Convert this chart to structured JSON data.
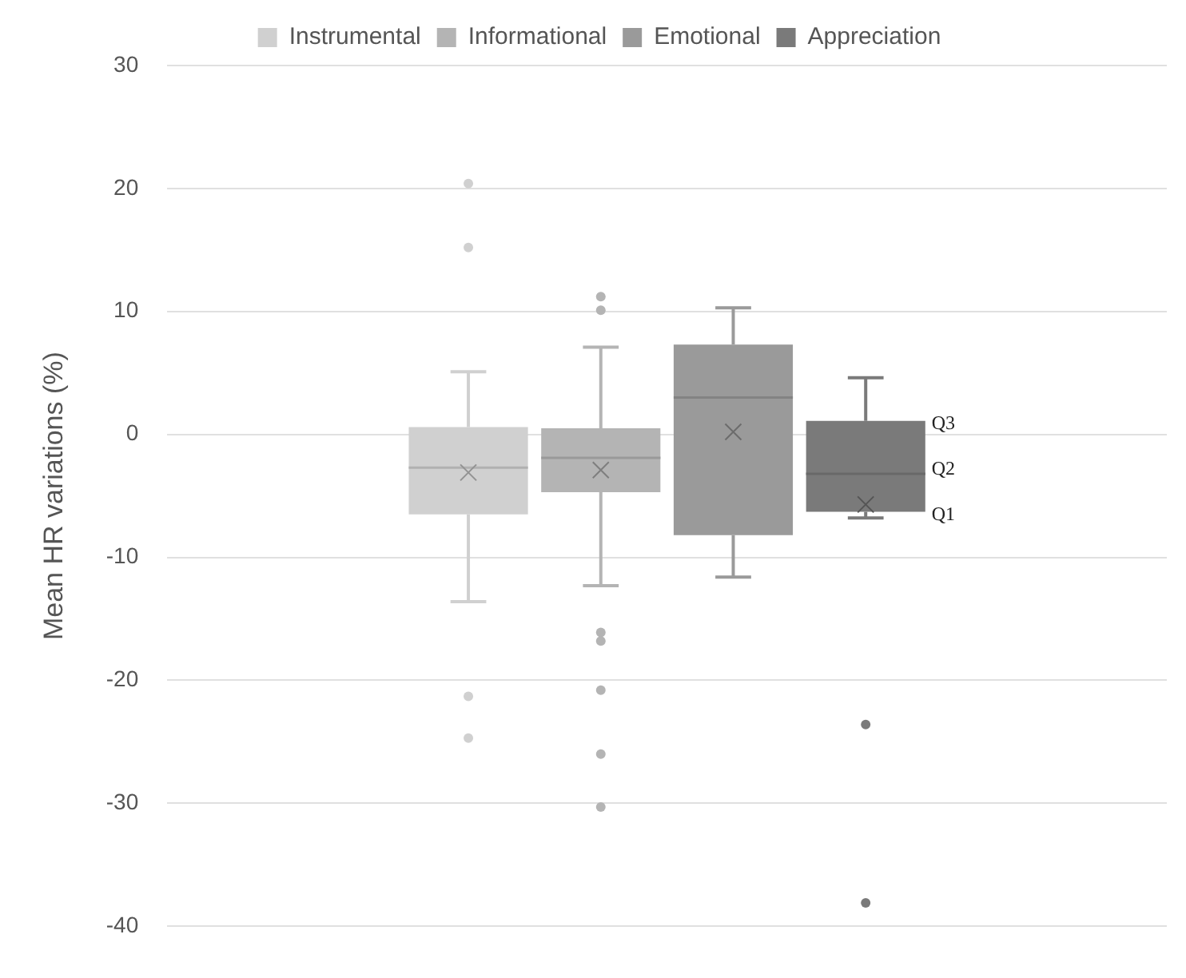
{
  "chart_data": {
    "type": "box",
    "ylabel": "Mean HR variations (%)",
    "categories": [
      null
    ],
    "ylim": [
      -40,
      30
    ],
    "yticks": [
      -40,
      -30,
      -20,
      -10,
      0,
      10,
      20,
      30
    ],
    "grid": "y",
    "legend": "top",
    "marker": "circle",
    "series": [
      {
        "name": "Instrumental",
        "color": "#d0d0d0",
        "boxes": [
          {
            "low": -13.6,
            "q1": -6.5,
            "median": -2.7,
            "q3": 0.6,
            "high": 5.1,
            "mean": -3.1,
            "outliers": [
              20.4,
              15.2,
              -21.3,
              -24.7
            ]
          }
        ]
      },
      {
        "name": "Informational",
        "color": "#b4b4b4",
        "boxes": [
          {
            "low": -12.3,
            "q1": -4.7,
            "median": -1.9,
            "q3": 0.5,
            "high": 7.1,
            "mean": -2.9,
            "outliers": [
              11.2,
              10.1,
              -16.1,
              -16.8,
              -20.8,
              -26.0,
              -30.3
            ]
          }
        ]
      },
      {
        "name": "Emotional",
        "color": "#9a9a9a",
        "boxes": [
          {
            "low": -11.6,
            "q1": -8.2,
            "median": 3.0,
            "q3": 7.3,
            "high": 10.3,
            "mean": 0.2
          }
        ]
      },
      {
        "name": "Appreciation",
        "color": "#7a7a7a",
        "boxes": [
          {
            "low": -6.8,
            "q1": -6.3,
            "median": -3.2,
            "q3": 1.1,
            "high": 4.6,
            "mean": -5.7,
            "outliers": [
              -23.6,
              -38.1
            ]
          }
        ]
      }
    ],
    "annotations": [
      "Q3",
      "Q2",
      "Q1"
    ]
  }
}
